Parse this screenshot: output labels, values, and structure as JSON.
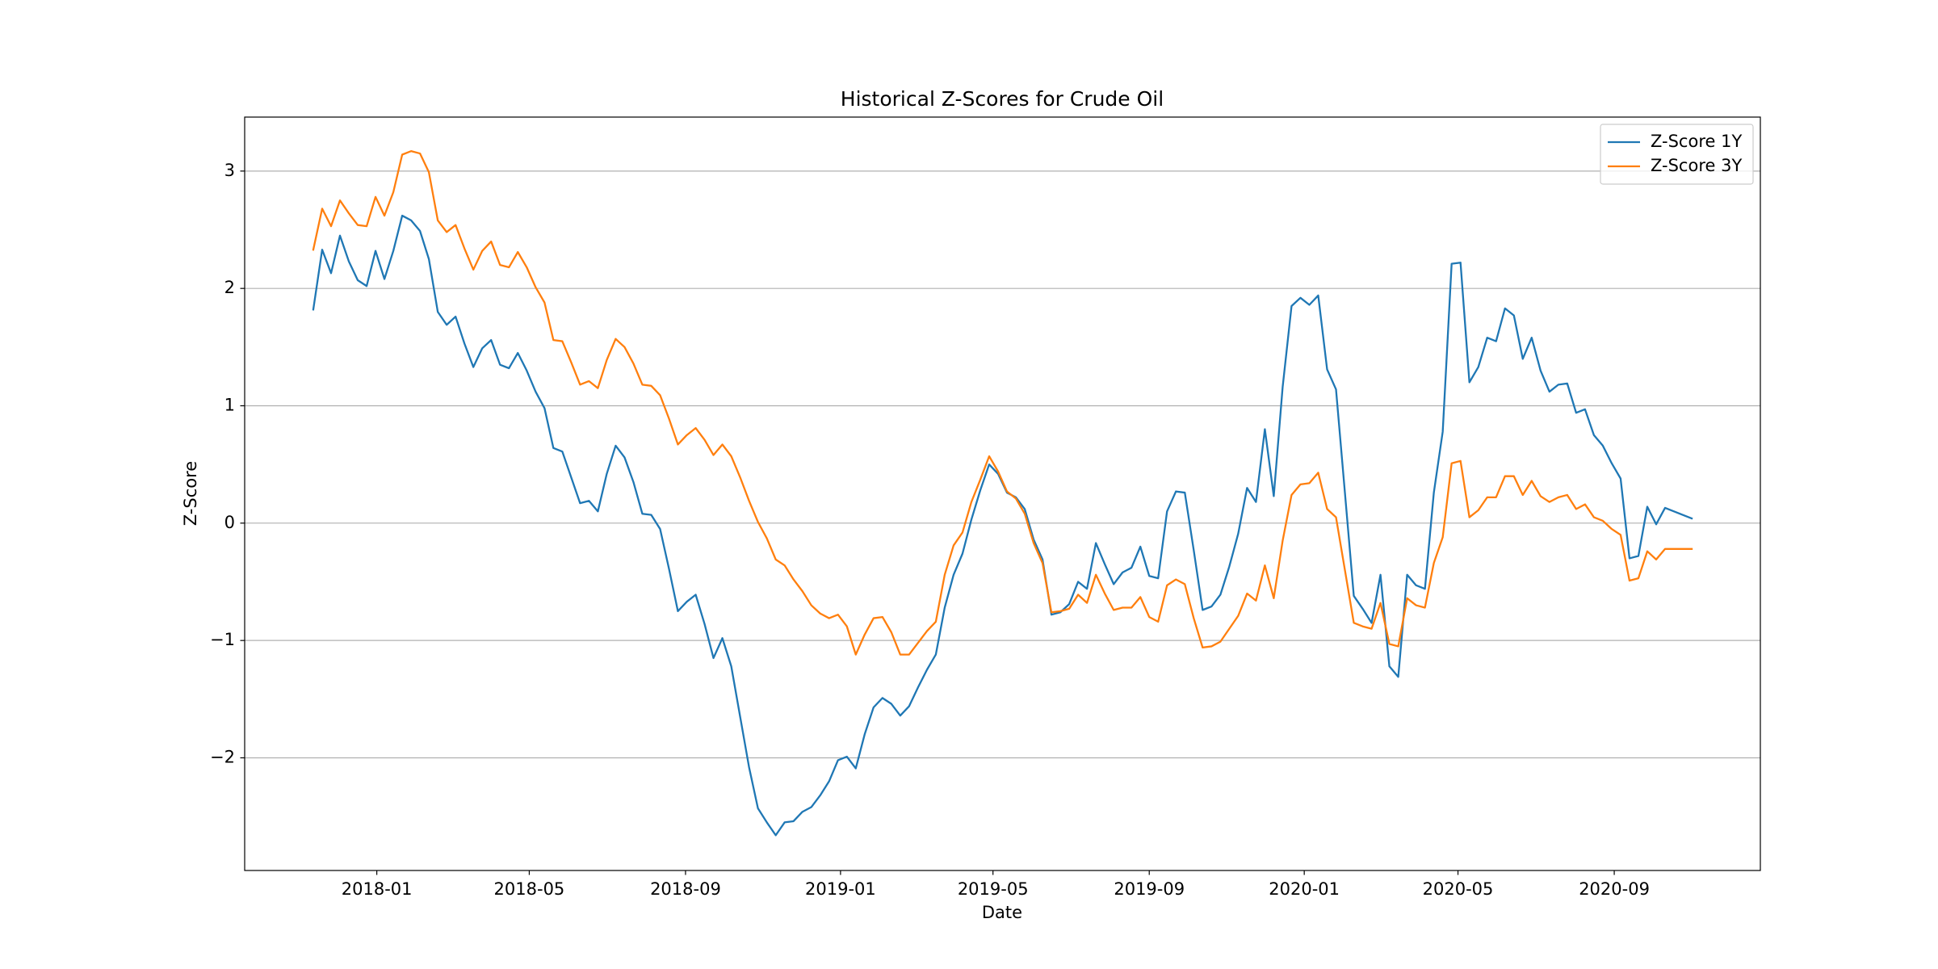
{
  "chart_data": {
    "type": "line",
    "title": "Historical Z-Scores for Crude Oil",
    "xlabel": "Date",
    "ylabel": "Z-Score",
    "x": [
      "2017-11-12",
      "2017-11-19",
      "2017-11-26",
      "2017-12-03",
      "2017-12-10",
      "2017-12-17",
      "2017-12-24",
      "2017-12-31",
      "2018-01-07",
      "2018-01-14",
      "2018-01-21",
      "2018-01-28",
      "2018-02-04",
      "2018-02-11",
      "2018-02-18",
      "2018-02-25",
      "2018-03-04",
      "2018-03-11",
      "2018-03-18",
      "2018-03-25",
      "2018-04-01",
      "2018-04-08",
      "2018-04-15",
      "2018-04-22",
      "2018-04-29",
      "2018-05-06",
      "2018-05-13",
      "2018-05-20",
      "2018-05-27",
      "2018-06-03",
      "2018-06-10",
      "2018-06-17",
      "2018-06-24",
      "2018-07-01",
      "2018-07-08",
      "2018-07-15",
      "2018-07-22",
      "2018-07-29",
      "2018-08-05",
      "2018-08-12",
      "2018-08-19",
      "2018-08-26",
      "2018-09-02",
      "2018-09-09",
      "2018-09-16",
      "2018-09-23",
      "2018-09-30",
      "2018-10-07",
      "2018-10-14",
      "2018-10-21",
      "2018-10-28",
      "2018-11-04",
      "2018-11-11",
      "2018-11-18",
      "2018-11-25",
      "2018-12-02",
      "2018-12-09",
      "2018-12-16",
      "2018-12-23",
      "2018-12-30",
      "2019-01-06",
      "2019-01-13",
      "2019-01-20",
      "2019-01-27",
      "2019-02-03",
      "2019-02-10",
      "2019-02-17",
      "2019-02-24",
      "2019-03-03",
      "2019-03-10",
      "2019-03-17",
      "2019-03-24",
      "2019-03-31",
      "2019-04-07",
      "2019-04-14",
      "2019-04-21",
      "2019-04-28",
      "2019-05-05",
      "2019-05-12",
      "2019-05-19",
      "2019-05-26",
      "2019-06-02",
      "2019-06-09",
      "2019-06-16",
      "2019-06-23",
      "2019-06-30",
      "2019-07-07",
      "2019-07-14",
      "2019-07-21",
      "2019-07-28",
      "2019-08-04",
      "2019-08-11",
      "2019-08-18",
      "2019-08-25",
      "2019-09-01",
      "2019-09-08",
      "2019-09-15",
      "2019-09-22",
      "2019-09-29",
      "2019-10-06",
      "2019-10-13",
      "2019-10-20",
      "2019-10-27",
      "2019-11-03",
      "2019-11-10",
      "2019-11-17",
      "2019-11-24",
      "2019-12-01",
      "2019-12-08",
      "2019-12-15",
      "2019-12-22",
      "2019-12-29",
      "2020-01-05",
      "2020-01-12",
      "2020-01-19",
      "2020-01-26",
      "2020-02-02",
      "2020-02-09",
      "2020-02-16",
      "2020-02-23",
      "2020-03-01",
      "2020-03-08",
      "2020-03-15",
      "2020-03-22",
      "2020-03-29",
      "2020-04-05",
      "2020-04-12",
      "2020-04-19",
      "2020-04-26",
      "2020-05-03",
      "2020-05-10",
      "2020-05-17",
      "2020-05-24",
      "2020-05-31",
      "2020-06-07",
      "2020-06-14",
      "2020-06-21",
      "2020-06-28",
      "2020-07-05",
      "2020-07-12",
      "2020-07-19",
      "2020-07-26",
      "2020-08-02",
      "2020-08-09",
      "2020-08-16",
      "2020-08-23",
      "2020-08-30",
      "2020-09-06",
      "2020-09-13",
      "2020-09-20",
      "2020-09-27",
      "2020-10-04",
      "2020-10-11",
      "2020-10-18",
      "2020-10-25",
      "2020-11-01"
    ],
    "series": [
      {
        "name": "Z-Score 1Y",
        "color": "#1f77b4",
        "values": [
          1.82,
          2.33,
          2.13,
          2.45,
          2.23,
          2.07,
          2.02,
          2.32,
          2.08,
          2.32,
          2.62,
          2.58,
          2.49,
          2.25,
          1.8,
          1.69,
          1.76,
          1.53,
          1.33,
          1.49,
          1.56,
          1.35,
          1.32,
          1.45,
          1.3,
          1.12,
          0.98,
          0.64,
          0.61,
          0.39,
          0.17,
          0.19,
          0.1,
          0.42,
          0.66,
          0.56,
          0.35,
          0.08,
          0.07,
          -0.05,
          -0.39,
          -0.75,
          -0.67,
          -0.61,
          -0.86,
          -1.15,
          -0.98,
          -1.22,
          -1.65,
          -2.08,
          -2.43,
          -2.55,
          -2.66,
          -2.55,
          -2.54,
          -2.46,
          -2.42,
          -2.32,
          -2.2,
          -2.02,
          -1.99,
          -2.09,
          -1.8,
          -1.57,
          -1.49,
          -1.54,
          -1.64,
          -1.56,
          -1.4,
          -1.25,
          -1.12,
          -0.72,
          -0.44,
          -0.26,
          0.03,
          0.28,
          0.5,
          0.42,
          0.26,
          0.22,
          0.12,
          -0.14,
          -0.31,
          -0.78,
          -0.76,
          -0.69,
          -0.5,
          -0.56,
          -0.17,
          -0.35,
          -0.52,
          -0.42,
          -0.38,
          -0.2,
          -0.45,
          -0.47,
          0.1,
          0.27,
          0.26,
          -0.23,
          -0.74,
          -0.71,
          -0.61,
          -0.37,
          -0.09,
          0.3,
          0.18,
          0.8,
          0.23,
          1.16,
          1.85,
          1.92,
          1.86,
          1.94,
          1.31,
          1.14,
          0.26,
          -0.62,
          -0.73,
          -0.85,
          -0.44,
          -1.22,
          -1.31,
          -0.44,
          -0.53,
          -0.56,
          0.26,
          0.78,
          2.21,
          2.22,
          1.2,
          1.33,
          1.58,
          1.55,
          1.83,
          1.77,
          1.4,
          1.58,
          1.3,
          1.12,
          1.18,
          1.19,
          0.94,
          0.97,
          0.75,
          0.66,
          0.51,
          0.38,
          -0.3,
          -0.28,
          0.14,
          -0.01,
          0.13,
          0.1,
          0.07,
          0.04
        ]
      },
      {
        "name": "Z-Score 3Y",
        "color": "#ff7f0e",
        "values": [
          2.33,
          2.68,
          2.53,
          2.75,
          2.64,
          2.54,
          2.53,
          2.78,
          2.62,
          2.82,
          3.14,
          3.17,
          3.15,
          2.99,
          2.58,
          2.48,
          2.54,
          2.34,
          2.16,
          2.32,
          2.4,
          2.2,
          2.18,
          2.31,
          2.18,
          2.01,
          1.88,
          1.56,
          1.55,
          1.37,
          1.18,
          1.21,
          1.15,
          1.39,
          1.57,
          1.5,
          1.36,
          1.18,
          1.17,
          1.09,
          0.89,
          0.67,
          0.75,
          0.81,
          0.71,
          0.58,
          0.67,
          0.57,
          0.39,
          0.19,
          0.01,
          -0.13,
          -0.31,
          -0.36,
          -0.48,
          -0.58,
          -0.7,
          -0.77,
          -0.81,
          -0.78,
          -0.88,
          -1.12,
          -0.95,
          -0.81,
          -0.8,
          -0.93,
          -1.12,
          -1.12,
          -1.02,
          -0.92,
          -0.84,
          -0.44,
          -0.19,
          -0.08,
          0.18,
          0.37,
          0.57,
          0.44,
          0.27,
          0.21,
          0.08,
          -0.17,
          -0.34,
          -0.76,
          -0.75,
          -0.73,
          -0.61,
          -0.68,
          -0.44,
          -0.6,
          -0.74,
          -0.72,
          -0.72,
          -0.63,
          -0.8,
          -0.84,
          -0.53,
          -0.48,
          -0.52,
          -0.81,
          -1.06,
          -1.05,
          -1.01,
          -0.9,
          -0.79,
          -0.6,
          -0.66,
          -0.36,
          -0.64,
          -0.15,
          0.24,
          0.33,
          0.34,
          0.43,
          0.12,
          0.05,
          -0.4,
          -0.85,
          -0.88,
          -0.9,
          -0.68,
          -1.03,
          -1.05,
          -0.64,
          -0.7,
          -0.72,
          -0.34,
          -0.12,
          0.51,
          0.53,
          0.05,
          0.11,
          0.22,
          0.22,
          0.4,
          0.4,
          0.24,
          0.36,
          0.23,
          0.18,
          0.22,
          0.24,
          0.12,
          0.16,
          0.05,
          0.02,
          -0.05,
          -0.1,
          -0.49,
          -0.47,
          -0.24,
          -0.31,
          -0.22,
          -0.22,
          -0.22,
          -0.22
        ]
      }
    ],
    "xlim": [
      "2017-09-19",
      "2020-12-25"
    ],
    "xticks": [
      {
        "value": "2018-01-01",
        "label": "2018-01"
      },
      {
        "value": "2018-05-01",
        "label": "2018-05"
      },
      {
        "value": "2018-09-01",
        "label": "2018-09"
      },
      {
        "value": "2019-01-01",
        "label": "2019-01"
      },
      {
        "value": "2019-05-01",
        "label": "2019-05"
      },
      {
        "value": "2019-09-01",
        "label": "2019-09"
      },
      {
        "value": "2020-01-01",
        "label": "2020-01"
      },
      {
        "value": "2020-05-01",
        "label": "2020-05"
      },
      {
        "value": "2020-09-01",
        "label": "2020-09"
      }
    ],
    "ylim": [
      -2.96,
      3.46
    ],
    "yticks": [
      {
        "value": -2,
        "label": "−2"
      },
      {
        "value": -1,
        "label": "−1"
      },
      0,
      1,
      2,
      3
    ],
    "grid": "y",
    "legend": "upper right"
  }
}
